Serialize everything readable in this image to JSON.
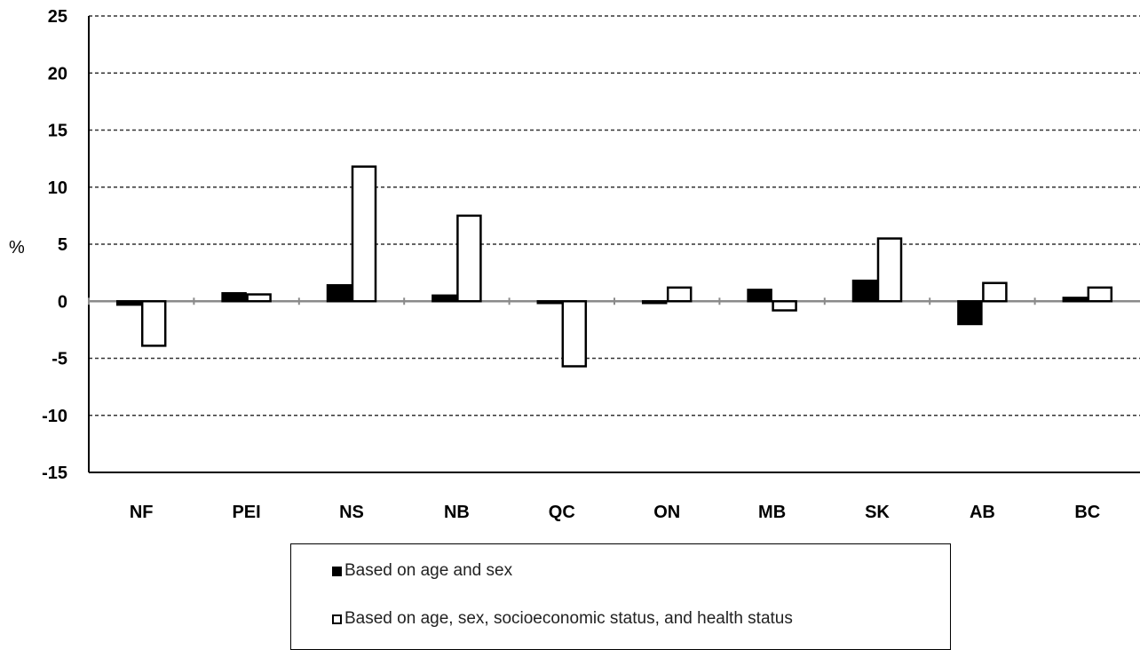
{
  "chart_data": {
    "type": "bar",
    "title": "",
    "xlabel": "",
    "ylabel": "%",
    "ylim": [
      -15,
      25
    ],
    "yticks": [
      25,
      20,
      15,
      10,
      5,
      0,
      -5,
      -10,
      -15
    ],
    "grid": true,
    "categories": [
      "NF",
      "PEI",
      "NS",
      "NB",
      "QC",
      "ON",
      "MB",
      "SK",
      "AB",
      "BC"
    ],
    "series": [
      {
        "name": "Based on age and sex",
        "color": "#000000",
        "values": [
          -0.3,
          0.7,
          1.4,
          0.5,
          -0.1,
          -0.1,
          1.0,
          1.8,
          -2.0,
          0.3
        ]
      },
      {
        "name": "Based on age, sex, socioeconomic status, and health status",
        "color": "#ffffff",
        "values": [
          -3.9,
          0.6,
          11.8,
          7.5,
          -5.7,
          1.2,
          -0.8,
          5.5,
          1.6,
          1.2
        ]
      }
    ],
    "legend_position": "bottom"
  }
}
